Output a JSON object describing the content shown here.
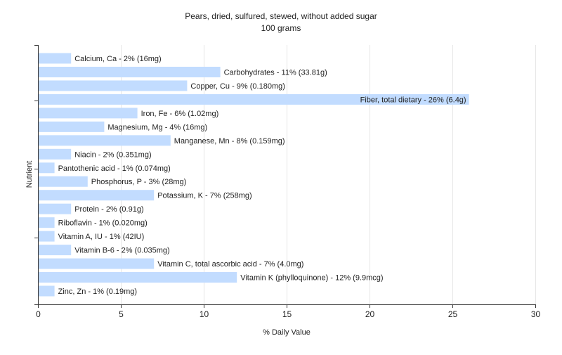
{
  "chart_data": {
    "type": "bar",
    "orientation": "horizontal",
    "title": "Pears, dried, sulfured, stewed, without added sugar",
    "subtitle": "100 grams",
    "xlabel": "% Daily Value",
    "ylabel": "Nutrient",
    "xlim": [
      0,
      30
    ],
    "xticks": [
      0,
      5,
      10,
      15,
      20,
      25,
      30
    ],
    "grid": "vertical",
    "colors": {
      "bar": "#c2dcff",
      "grid": "#e6e6e6",
      "axis": "#333333",
      "text": "#222222"
    },
    "categories": [
      "Calcium, Ca",
      "Carbohydrates",
      "Copper, Cu",
      "Fiber, total dietary",
      "Iron, Fe",
      "Magnesium, Mg",
      "Manganese, Mn",
      "Niacin",
      "Pantothenic acid",
      "Phosphorus, P",
      "Potassium, K",
      "Protein",
      "Riboflavin",
      "Vitamin A, IU",
      "Vitamin B-6",
      "Vitamin C, total ascorbic acid",
      "Vitamin K (phylloquinone)",
      "Zinc, Zn"
    ],
    "values": [
      2,
      11,
      9,
      26,
      6,
      4,
      8,
      2,
      1,
      3,
      7,
      2,
      1,
      1,
      2,
      7,
      12,
      1
    ],
    "labels": [
      "Calcium, Ca - 2% (16mg)",
      "Carbohydrates - 11% (33.81g)",
      "Copper, Cu - 9% (0.180mg)",
      "Fiber, total dietary - 26% (6.4g)",
      "Iron, Fe - 6% (1.02mg)",
      "Magnesium, Mg - 4% (16mg)",
      "Manganese, Mn - 8% (0.159mg)",
      "Niacin - 2% (0.351mg)",
      "Pantothenic acid - 1% (0.074mg)",
      "Phosphorus, P - 3% (28mg)",
      "Potassium, K - 7% (258mg)",
      "Protein - 2% (0.91g)",
      "Riboflavin - 1% (0.020mg)",
      "Vitamin A, IU - 1% (42IU)",
      "Vitamin B-6 - 2% (0.035mg)",
      "Vitamin C, total ascorbic acid - 7% (4.0mg)",
      "Vitamin K (phylloquinone) - 12% (9.9mcg)",
      "Zinc, Zn - 1% (0.19mg)"
    ]
  }
}
